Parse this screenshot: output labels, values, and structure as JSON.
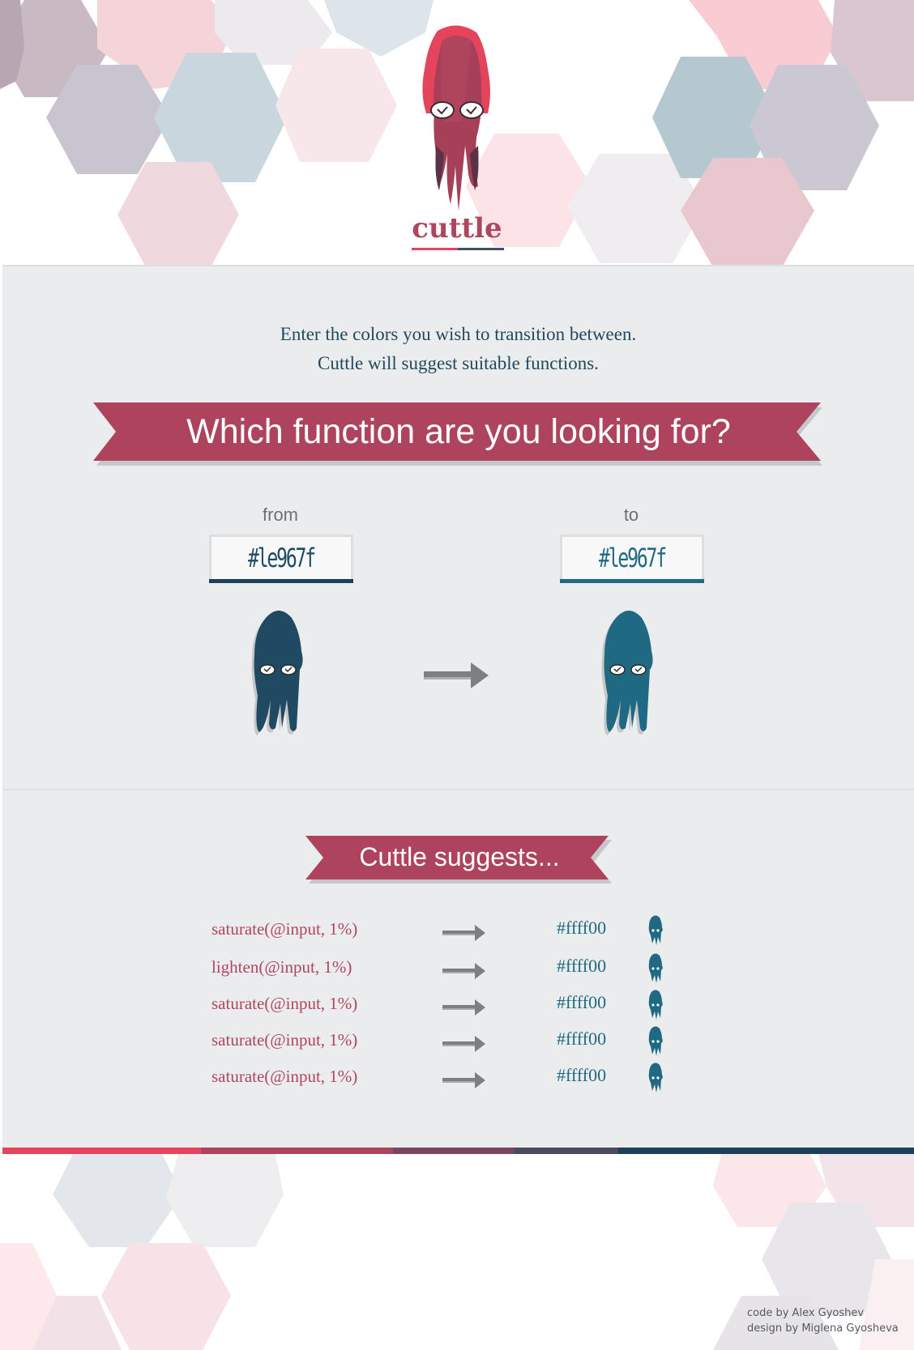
{
  "brand": {
    "logo_text": "cuttle"
  },
  "intro": {
    "line1": "Enter the colors you wish to transition between.",
    "line2": "Cuttle will suggest suitable functions."
  },
  "heading": "Which function are you looking for?",
  "from": {
    "label": "from",
    "value": "#le967f",
    "squid_color": "#1f4a62"
  },
  "to": {
    "label": "to",
    "value": "#le967f",
    "squid_color": "#1f6a82"
  },
  "suggestions_heading": "Cuttle suggests...",
  "suggestions": [
    {
      "function": "saturate(@input, 1%)",
      "result": "#ffff00"
    },
    {
      "function": "lighten(@input, 1%)",
      "result": "#ffff00"
    },
    {
      "function": "saturate(@input, 1%)",
      "result": "#ffff00"
    },
    {
      "function": "saturate(@input, 1%)",
      "result": "#ffff00"
    },
    {
      "function": "saturate(@input, 1%)",
      "result": "#ffff00"
    }
  ],
  "credits": {
    "code": "code by Alex Gyoshev",
    "design": "design by Miglena Gyosheva"
  },
  "colors": {
    "accent": "#b0465e",
    "teal": "#1f6a82",
    "navy": "#1e4058",
    "panel": "#ebeced"
  }
}
